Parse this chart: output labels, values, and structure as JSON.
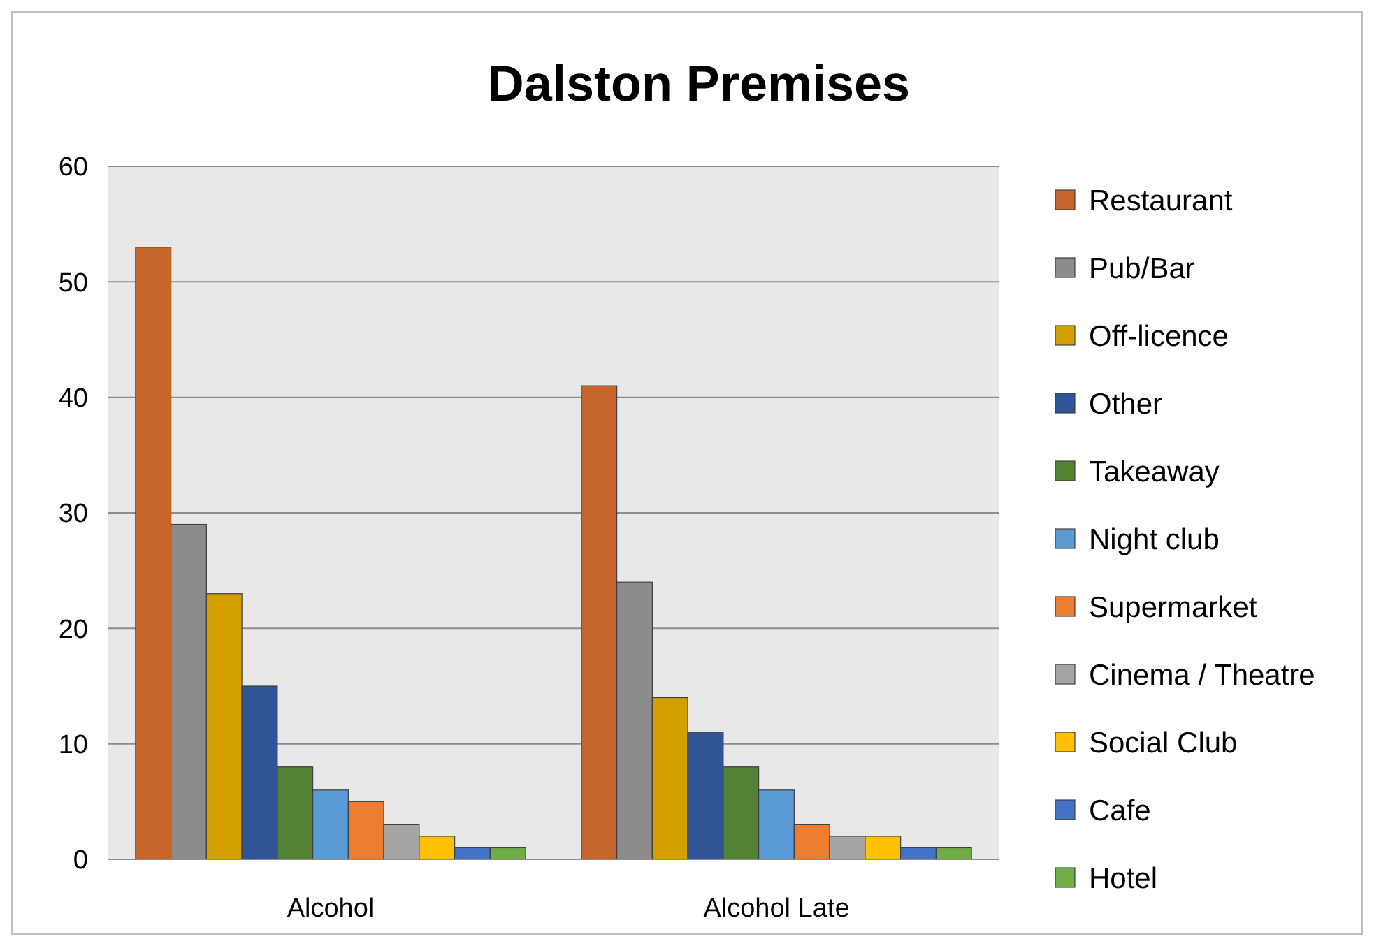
{
  "chart_data": {
    "type": "bar",
    "title": "Dalston Premises",
    "categories": [
      "Alcohol",
      "Alcohol Late"
    ],
    "series": [
      {
        "name": "Restaurant",
        "color": "#c5652b",
        "values": [
          53,
          41
        ]
      },
      {
        "name": "Pub/Bar",
        "color": "#8c8c8c",
        "values": [
          29,
          24
        ]
      },
      {
        "name": "Off-licence",
        "color": "#d4a000",
        "values": [
          23,
          14
        ]
      },
      {
        "name": "Other",
        "color": "#2f5597",
        "values": [
          15,
          11
        ]
      },
      {
        "name": "Takeaway",
        "color": "#548235",
        "values": [
          8,
          8
        ]
      },
      {
        "name": "Night club",
        "color": "#5b9bd5",
        "values": [
          6,
          6
        ]
      },
      {
        "name": "Supermarket",
        "color": "#ed7d31",
        "values": [
          5,
          3
        ]
      },
      {
        "name": "Cinema / Theatre",
        "color": "#a5a5a5",
        "values": [
          3,
          2
        ]
      },
      {
        "name": "Social Club",
        "color": "#ffc000",
        "values": [
          2,
          2
        ]
      },
      {
        "name": "Cafe",
        "color": "#4472c4",
        "values": [
          1,
          1
        ]
      },
      {
        "name": "Hotel",
        "color": "#70ad47",
        "values": [
          1,
          1
        ]
      }
    ],
    "ylim": [
      0,
      60
    ],
    "yticks": [
      0,
      10,
      20,
      30,
      40,
      50,
      60
    ],
    "grid": "y",
    "legend": "right"
  }
}
